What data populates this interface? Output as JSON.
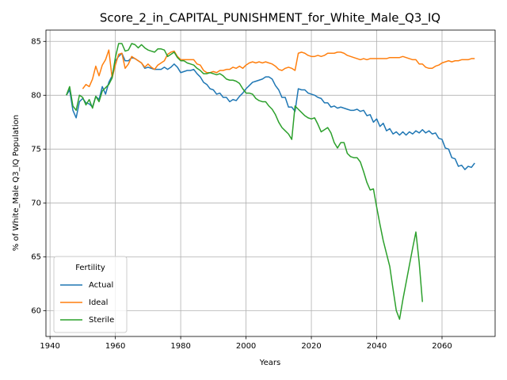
{
  "chart_data": {
    "type": "line",
    "title": "Score_2_in_CAPITAL_PUNISHMENT_for_White_Male_Q3_IQ",
    "x_label": "Years",
    "y_label": "% of White_Male Q3_IQ Population",
    "legend_title": "Fertility",
    "legend_position": "lower left",
    "grid": true,
    "x": [
      1945,
      1946,
      1947,
      1948,
      1949,
      1950,
      1951,
      1952,
      1953,
      1954,
      1955,
      1956,
      1957,
      1958,
      1959,
      1960,
      1961,
      1962,
      1963,
      1964,
      1965,
      1966,
      1967,
      1968,
      1969,
      1970,
      1971,
      1972,
      1973,
      1974,
      1975,
      1976,
      1977,
      1978,
      1979,
      1980,
      1981,
      1982,
      1983,
      1984,
      1985,
      1986,
      1987,
      1988,
      1989,
      1990,
      1991,
      1992,
      1993,
      1994,
      1995,
      1996,
      1997,
      1998,
      1999,
      2000,
      2001,
      2002,
      2003,
      2004,
      2005,
      2006,
      2007,
      2008,
      2009,
      2010,
      2011,
      2012,
      2013,
      2014,
      2015,
      2016,
      2017,
      2018,
      2019,
      2020,
      2021,
      2022,
      2023,
      2024,
      2025,
      2026,
      2027,
      2028,
      2029,
      2030,
      2031,
      2032,
      2033,
      2034,
      2035,
      2036,
      2037,
      2038,
      2039,
      2040,
      2041,
      2042,
      2043,
      2044,
      2045,
      2046,
      2047,
      2048,
      2049,
      2050,
      2051,
      2052,
      2053,
      2054,
      2055,
      2056,
      2057,
      2058,
      2059,
      2060,
      2061,
      2062,
      2063,
      2064,
      2065,
      2066,
      2067,
      2068,
      2069,
      2070
    ],
    "series": [
      {
        "name": "Actual",
        "color": "#1f77b4",
        "values": [
          80,
          80.5,
          78.6,
          77.9,
          79.4,
          79.7,
          79.3,
          79.2,
          78.9,
          79.9,
          79.6,
          80.8,
          80.1,
          81.2,
          81.8,
          83.2,
          83.6,
          83.9,
          83.2,
          83.2,
          83.5,
          83.4,
          83.2,
          83,
          82.5,
          82.6,
          82.5,
          82.4,
          82.4,
          82.4,
          82.6,
          82.4,
          82.6,
          82.9,
          82.6,
          82.1,
          82.2,
          82.3,
          82.3,
          82.4,
          82,
          81.7,
          81.2,
          81,
          80.6,
          80.5,
          80.1,
          80.2,
          79.8,
          79.8,
          79.4,
          79.6,
          79.5,
          79.9,
          80.2,
          80.6,
          80.9,
          81.2,
          81.3,
          81.4,
          81.5,
          81.7,
          81.7,
          81.5,
          80.9,
          80.5,
          79.8,
          79.8,
          78.9,
          78.9,
          78.5,
          80.6,
          80.5,
          80.5,
          80.2,
          80.1,
          80,
          79.8,
          79.7,
          79.3,
          79.3,
          78.9,
          79,
          78.8,
          78.9,
          78.8,
          78.7,
          78.6,
          78.6,
          78.7,
          78.5,
          78.6,
          78.1,
          78.2,
          77.5,
          77.8,
          77.1,
          77.4,
          76.7,
          76.9,
          76.4,
          76.6,
          76.3,
          76.6,
          76.3,
          76.6,
          76.4,
          76.7,
          76.5,
          76.8,
          76.5,
          76.7,
          76.4,
          76.5,
          76,
          75.9,
          75.1,
          75,
          74.2,
          74.1,
          73.4,
          73.5,
          73.1,
          73.4,
          73.3,
          73.7
        ]
      },
      {
        "name": "Ideal",
        "color": "#ff7f0e",
        "values": [
          null,
          null,
          null,
          null,
          null,
          80.6,
          81,
          80.8,
          81.5,
          82.7,
          81.8,
          82.8,
          83.3,
          84.2,
          81.6,
          82.8,
          83.8,
          83.9,
          82.5,
          82.9,
          83.6,
          83.4,
          83.2,
          83,
          82.6,
          82.9,
          82.6,
          82.4,
          82.8,
          83,
          83.2,
          83.8,
          84,
          84.1,
          83.6,
          83.3,
          83.3,
          83.3,
          83.3,
          83.3,
          82.9,
          82.8,
          82.3,
          82.1,
          82.1,
          82.2,
          82.1,
          82.3,
          82.3,
          82.4,
          82.4,
          82.6,
          82.5,
          82.7,
          82.5,
          82.8,
          83,
          83.1,
          83,
          83.1,
          83,
          83.1,
          83,
          82.9,
          82.7,
          82.4,
          82.3,
          82.5,
          82.6,
          82.5,
          82.3,
          83.9,
          84,
          83.9,
          83.7,
          83.6,
          83.6,
          83.7,
          83.6,
          83.7,
          83.9,
          83.9,
          83.9,
          84,
          84,
          83.9,
          83.7,
          83.6,
          83.5,
          83.4,
          83.3,
          83.4,
          83.3,
          83.4,
          83.4,
          83.4,
          83.4,
          83.4,
          83.4,
          83.5,
          83.5,
          83.5,
          83.5,
          83.6,
          83.5,
          83.4,
          83.3,
          83.3,
          82.9,
          82.9,
          82.6,
          82.5,
          82.5,
          82.7,
          82.8,
          83,
          83.1,
          83.2,
          83.1,
          83.2,
          83.2,
          83.3,
          83.3,
          83.3,
          83.4,
          83.4
        ]
      },
      {
        "name": "Sterile",
        "color": "#2ca02c",
        "values": [
          80,
          80.8,
          79,
          78.6,
          80,
          79.8,
          79.1,
          79.6,
          78.8,
          79.9,
          79.4,
          80.4,
          80.7,
          81,
          81.6,
          83.5,
          84.8,
          84.8,
          84.1,
          84.2,
          84.8,
          84.7,
          84.4,
          84.7,
          84.4,
          84.2,
          84.1,
          84,
          84.3,
          84.3,
          84.2,
          83.6,
          83.8,
          84,
          83.5,
          83.2,
          83.2,
          83,
          82.9,
          82.8,
          82.5,
          82.3,
          82,
          82,
          82.1,
          82,
          81.9,
          82,
          81.8,
          81.5,
          81.4,
          81.4,
          81.3,
          81.1,
          80.6,
          80.2,
          80.2,
          80.1,
          79.7,
          79.5,
          79.4,
          79.4,
          79,
          78.7,
          78.2,
          77.5,
          77,
          76.7,
          76.4,
          75.9,
          79,
          78.7,
          78.4,
          78.1,
          77.9,
          77.8,
          77.9,
          77.3,
          76.6,
          76.8,
          77,
          76.5,
          75.6,
          75.1,
          75.6,
          75.6,
          74.6,
          74.3,
          74.2,
          74.2,
          73.8,
          72.9,
          71.9,
          71.2,
          71.3,
          69.6,
          68,
          66.5,
          65.3,
          64.1,
          62,
          60,
          59.2,
          61,
          62.6,
          64.2,
          65.8,
          67.3,
          64.5,
          60.8,
          null,
          null,
          null,
          null,
          null,
          null,
          null,
          null,
          null,
          null,
          null,
          null,
          null,
          null,
          null,
          null
        ]
      }
    ],
    "xlim": [
      1938.75,
      2076.25
    ],
    "ylim": [
      57.6,
      86.05
    ],
    "xticks": [
      1940,
      1960,
      1980,
      2000,
      2020,
      2040,
      2060
    ],
    "yticks": [
      60,
      65,
      70,
      75,
      80,
      85
    ]
  }
}
